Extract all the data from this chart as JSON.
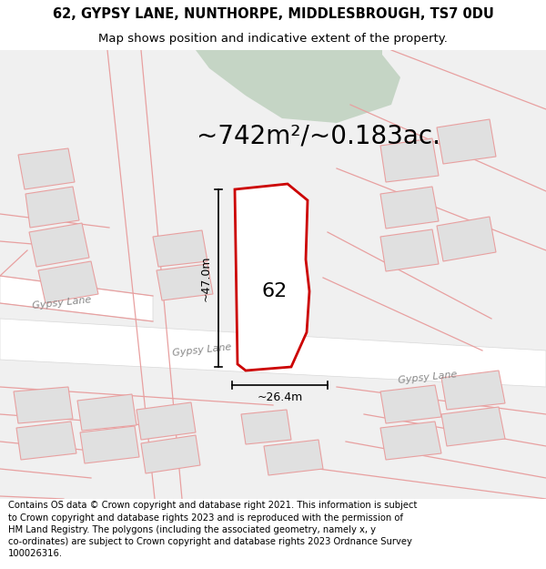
{
  "title_line1": "62, GYPSY LANE, NUNTHORPE, MIDDLESBROUGH, TS7 0DU",
  "title_line2": "Map shows position and indicative extent of the property.",
  "area_text": "~742m²/~0.183ac.",
  "label_62": "62",
  "dim_vertical": "~47.0m",
  "dim_horizontal": "~26.4m",
  "road_label_left": "Gypsy Lane",
  "road_label_mid": "Gypsy Lane",
  "road_label_right": "Gypsy Lane",
  "footer_text": "Contains OS data © Crown copyright and database right 2021. This information is subject to Crown copyright and database rights 2023 and is reproduced with the permission of HM Land Registry. The polygons (including the associated geometry, namely x, y co-ordinates) are subject to Crown copyright and database rights 2023 Ordnance Survey 100026316.",
  "bg_color": "#f0f0f0",
  "white": "#ffffff",
  "green_fill": "#c5d5c5",
  "building_fill": "#e0e0e0",
  "pink_line": "#e8a0a0",
  "plot_red": "#cc0000",
  "gray_road": "#d8d8d8",
  "dim_color": "#000000",
  "road_text_color": "#888888",
  "title_fs": 10.5,
  "subtitle_fs": 9.5,
  "area_fs": 20,
  "label_fs": 16,
  "dim_fs": 9,
  "road_fs": 8,
  "footer_fs": 7.2
}
